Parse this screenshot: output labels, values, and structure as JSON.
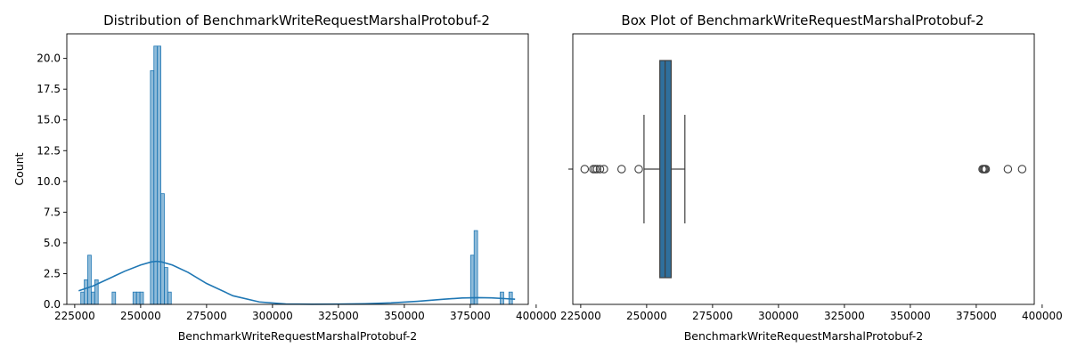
{
  "chart_data": [
    {
      "type": "histogram",
      "title": "Distribution of BenchmarkWriteRequestMarshalProtobuf-2",
      "xlabel": "BenchmarkWriteRequestMarshalProtobuf-2",
      "ylabel": "Count",
      "xlim": [
        222000,
        397000
      ],
      "ylim": [
        0,
        22
      ],
      "x_ticks": [
        225000,
        250000,
        275000,
        300000,
        325000,
        350000,
        375000,
        400000
      ],
      "x_tick_labels": [
        "225000",
        "250000",
        "275000",
        "300000",
        "325000",
        "350000",
        "375000",
        "400000"
      ],
      "y_ticks": [
        0,
        2.5,
        5,
        7.5,
        10,
        12.5,
        15,
        17.5,
        20
      ],
      "y_tick_labels": [
        "0.0",
        "2.5",
        "5.0",
        "7.5",
        "10.0",
        "12.5",
        "15.0",
        "17.5",
        "20.0"
      ],
      "bin_width": 1320,
      "bins": [
        {
          "x": 227300,
          "count": 1
        },
        {
          "x": 228620,
          "count": 2
        },
        {
          "x": 229940,
          "count": 4
        },
        {
          "x": 231260,
          "count": 1
        },
        {
          "x": 232580,
          "count": 2
        },
        {
          "x": 239180,
          "count": 1
        },
        {
          "x": 247100,
          "count": 1
        },
        {
          "x": 248420,
          "count": 1
        },
        {
          "x": 249740,
          "count": 1
        },
        {
          "x": 253700,
          "count": 19
        },
        {
          "x": 255020,
          "count": 21
        },
        {
          "x": 256340,
          "count": 21
        },
        {
          "x": 257660,
          "count": 9
        },
        {
          "x": 258980,
          "count": 3
        },
        {
          "x": 260300,
          "count": 1
        },
        {
          "x": 375140,
          "count": 4
        },
        {
          "x": 376460,
          "count": 6
        },
        {
          "x": 386360,
          "count": 1
        },
        {
          "x": 389660,
          "count": 1
        }
      ],
      "kde": {
        "x": [
          226500,
          232000,
          238000,
          244000,
          250000,
          254000,
          256000,
          258000,
          262000,
          268000,
          275000,
          285000,
          295000,
          305000,
          315000,
          325000,
          335000,
          345000,
          355000,
          365000,
          372000,
          378000,
          383000,
          388000,
          392000
        ],
        "y": [
          1.1,
          1.5,
          2.1,
          2.7,
          3.2,
          3.45,
          3.5,
          3.45,
          3.2,
          2.6,
          1.7,
          0.7,
          0.2,
          0.03,
          0.01,
          0.02,
          0.05,
          0.12,
          0.25,
          0.42,
          0.52,
          0.55,
          0.53,
          0.47,
          0.42
        ]
      },
      "color": "#1f77b4"
    },
    {
      "type": "box",
      "title": "Box Plot of BenchmarkWriteRequestMarshalProtobuf-2",
      "xlabel": "BenchmarkWriteRequestMarshalProtobuf-2",
      "xlim": [
        222000,
        397000
      ],
      "x_ticks": [
        225000,
        250000,
        275000,
        300000,
        325000,
        350000,
        375000,
        400000
      ],
      "x_tick_labels": [
        "225000",
        "250000",
        "275000",
        "300000",
        "325000",
        "350000",
        "375000",
        "400000"
      ],
      "q1": 255000,
      "median": 257000,
      "q3": 259300,
      "whisker_low": 249000,
      "whisker_high": 264500,
      "outliers": [
        226500,
        229800,
        230500,
        231200,
        232300,
        233800,
        240500,
        247000,
        377400,
        377800,
        378200,
        378600,
        387000,
        392400
      ],
      "color": "#2f6f9c"
    }
  ]
}
